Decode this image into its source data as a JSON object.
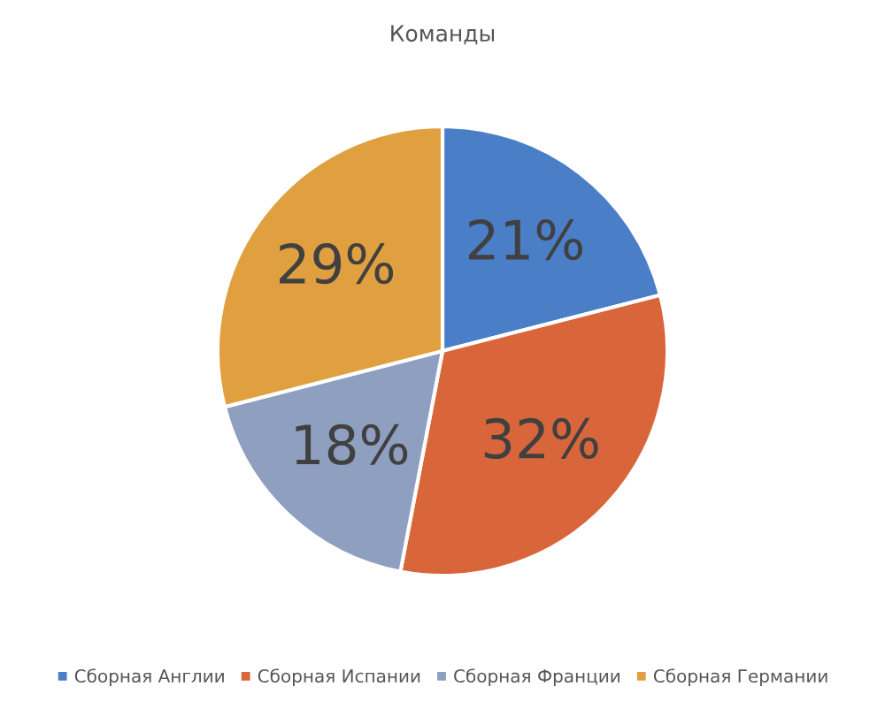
{
  "chart_data": {
    "type": "pie",
    "title": "Команды",
    "categories": [
      "Сборная Англии",
      "Сборная Испании",
      "Сборная Франции",
      "Сборная Германии"
    ],
    "values": [
      21,
      32,
      18,
      29
    ],
    "colors": [
      "#4a7fc8",
      "#d9653a",
      "#8f9fc0",
      "#e0a040"
    ],
    "value_labels": [
      "21%",
      "32%",
      "18%",
      "29%"
    ],
    "legend": "bottom"
  }
}
